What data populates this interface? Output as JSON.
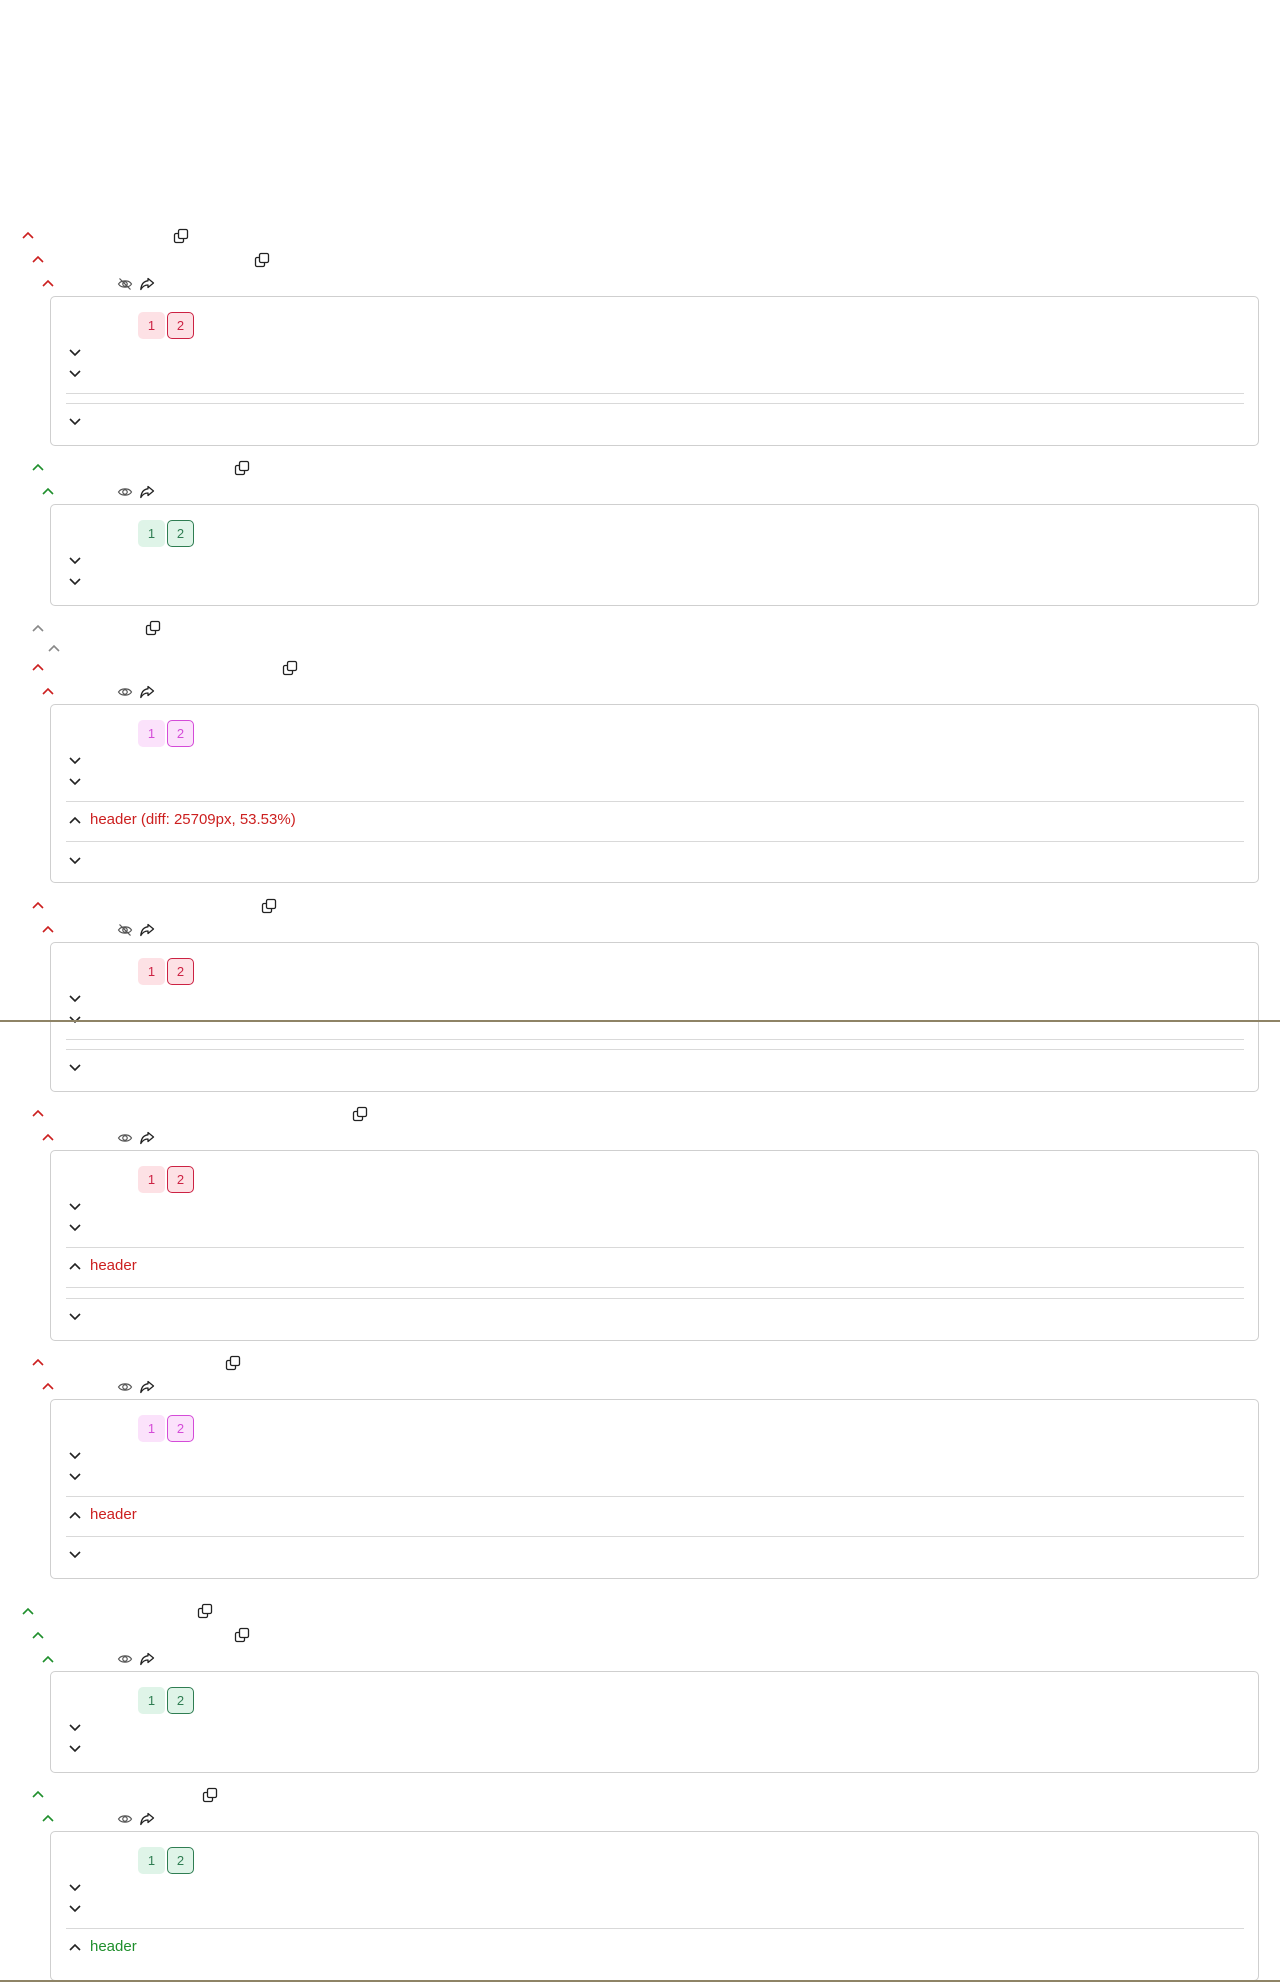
{
  "colors": {
    "fail": "#cc1f1f",
    "pass": "#1f8f2c",
    "neutral": "#888888",
    "separator": "#8e8366"
  },
  "icons": {
    "chevron_up": "chevron-up-icon",
    "chevron_down": "chevron-down-icon",
    "open": "open-external-icon",
    "eye": "eye-icon",
    "eye_off": "eye-off-icon",
    "share": "share-icon"
  },
  "pills": {
    "first": "1",
    "second": "2"
  },
  "headers": {
    "diff": "header (diff: 25709px, 53.53%)",
    "plain": "header"
  }
}
